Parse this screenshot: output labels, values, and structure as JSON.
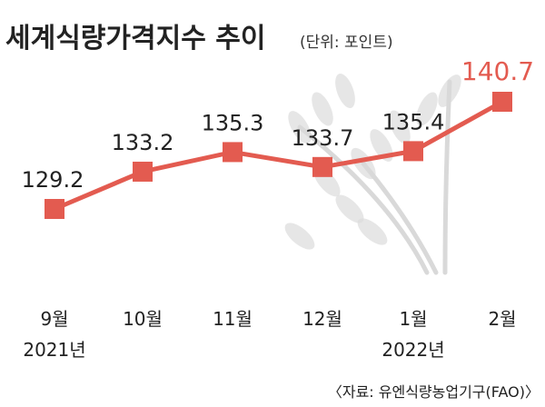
{
  "chart_data": {
    "type": "line",
    "title": "세계식량가격지수 추이",
    "unit": "(단위: 포인트)",
    "categories": [
      "9월",
      "10월",
      "11월",
      "12월",
      "1월",
      "2월"
    ],
    "years": [
      {
        "label": "2021년",
        "index": 0
      },
      {
        "label": "2022년",
        "index": 4
      }
    ],
    "values": [
      129.2,
      133.2,
      135.3,
      133.7,
      135.4,
      140.7
    ],
    "value_labels": [
      "129.2",
      "133.2",
      "135.3",
      "133.7",
      "135.4",
      "140.7"
    ],
    "source": "〈자료: 유엔식량농업기구(FAO)〉",
    "ylim": [
      125,
      143
    ],
    "colors": {
      "line": "#e35b50",
      "marker": "#e35b50",
      "highlight": "#e35b50",
      "wheat": "#d9d9d9"
    }
  }
}
